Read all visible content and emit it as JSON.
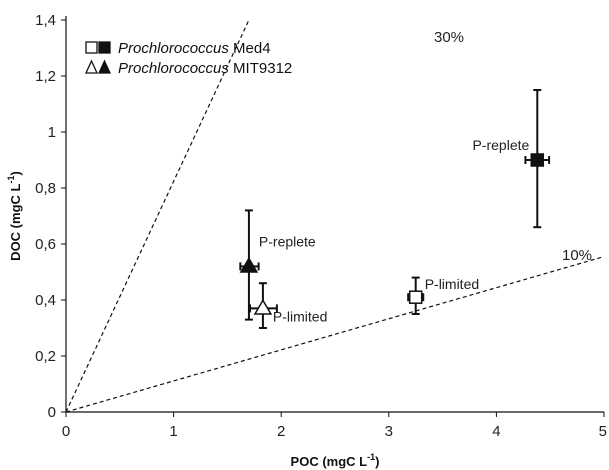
{
  "chart_data": {
    "type": "scatter",
    "x_axis": {
      "label_main": "POC (mgC L",
      "label_sup": "-1",
      "label_close": ")",
      "range": [
        0,
        5
      ],
      "ticks": [
        0,
        1,
        2,
        3,
        4,
        5
      ],
      "tick_labels": [
        "0",
        "1",
        "2",
        "3",
        "4",
        "5"
      ]
    },
    "y_axis": {
      "label_main": "DOC (mgC L",
      "label_sup": "-1",
      "label_close": ")",
      "range": [
        0,
        1.4
      ],
      "ticks": [
        0,
        0.2,
        0.4,
        0.6,
        0.8,
        1.0,
        1.2,
        1.4
      ],
      "tick_labels": [
        "0",
        "0,2",
        "0,4",
        "0,6",
        "0,8",
        "1",
        "1,2",
        "1,4"
      ]
    },
    "grid": false,
    "legend_position": "top-left",
    "legend": [
      {
        "symbols": [
          "square-open",
          "square-filled"
        ],
        "name_italic": "Prochlorococcus",
        "name_rest": " Med4"
      },
      {
        "symbols": [
          "triangle-open",
          "triangle-filled"
        ],
        "name_italic": "Prochlorococcus",
        "name_rest": " MIT9312"
      }
    ],
    "reference_lines": [
      {
        "label": "30%",
        "slope": 0.3,
        "style": "dashed"
      },
      {
        "label": "10%",
        "slope": 0.1,
        "style": "dashed"
      }
    ],
    "points": [
      {
        "strain": "Med4",
        "condition": "P-replete",
        "marker": "square-filled",
        "x": 4.38,
        "y": 0.9,
        "x_err": [
          4.27,
          4.49
        ],
        "y_err": [
          0.66,
          1.15
        ]
      },
      {
        "strain": "Med4",
        "condition": "P-limited",
        "marker": "square-open",
        "x": 3.25,
        "y": 0.41,
        "x_err": [
          3.18,
          3.32
        ],
        "y_err": [
          0.35,
          0.48
        ]
      },
      {
        "strain": "MIT9312",
        "condition": "P-replete",
        "marker": "triangle-filled",
        "x": 1.7,
        "y": 0.52,
        "x_err": [
          1.62,
          1.79
        ],
        "y_err": [
          0.33,
          0.72
        ]
      },
      {
        "strain": "MIT9312",
        "condition": "P-limited",
        "marker": "triangle-open",
        "x": 1.83,
        "y": 0.37,
        "x_err": [
          1.71,
          1.96
        ],
        "y_err": [
          0.3,
          0.46
        ]
      }
    ]
  }
}
